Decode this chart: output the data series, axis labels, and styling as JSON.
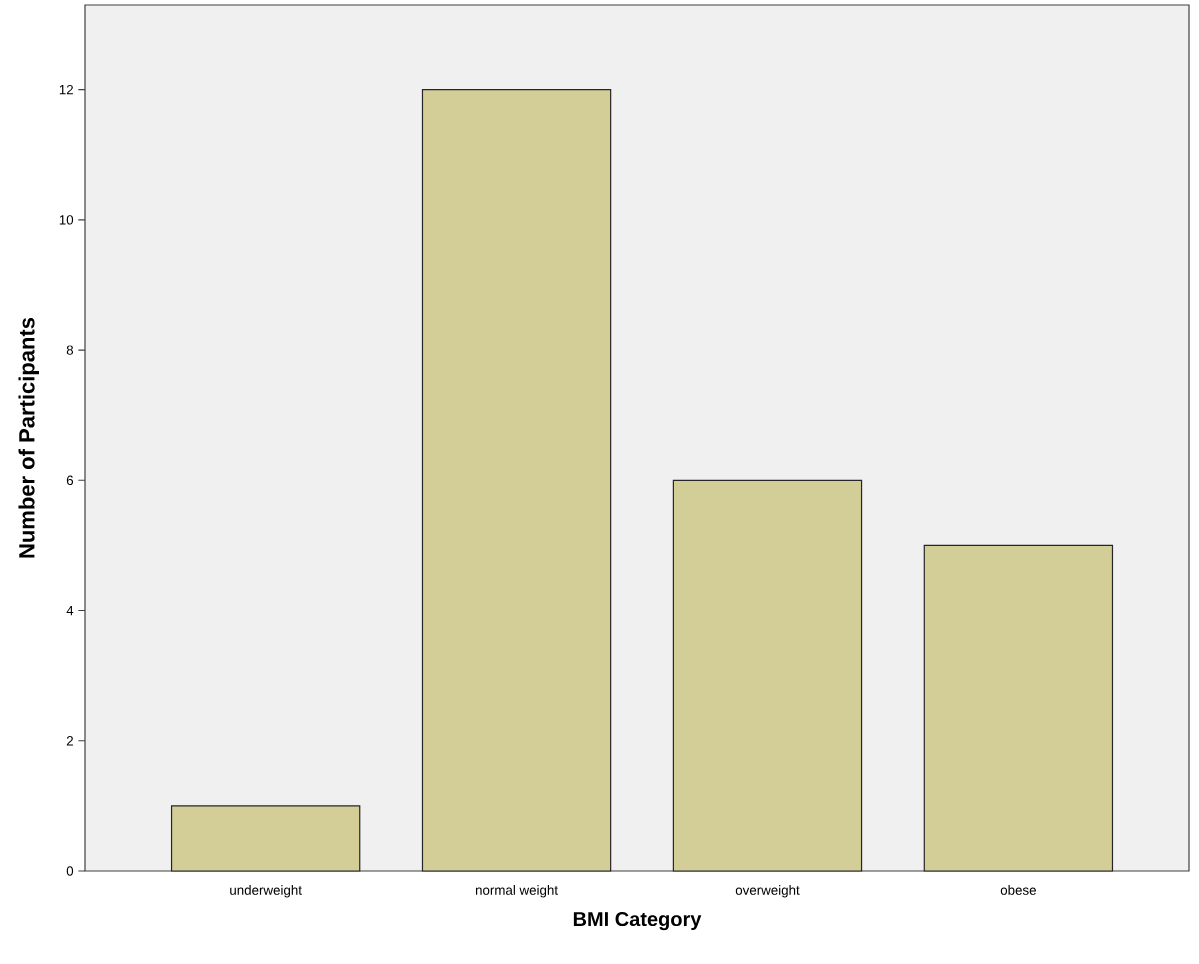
{
  "chart_data": {
    "type": "bar",
    "categories": [
      "underweight",
      "normal weight",
      "overweight",
      "obese"
    ],
    "values": [
      1,
      12,
      6,
      5
    ],
    "color": "#d3ce97",
    "xlabel": "BMI Category",
    "ylabel": "Number of Participants",
    "ylim": [
      0,
      13.3
    ],
    "yticks": [
      0,
      2,
      4,
      6,
      8,
      10,
      12
    ]
  }
}
